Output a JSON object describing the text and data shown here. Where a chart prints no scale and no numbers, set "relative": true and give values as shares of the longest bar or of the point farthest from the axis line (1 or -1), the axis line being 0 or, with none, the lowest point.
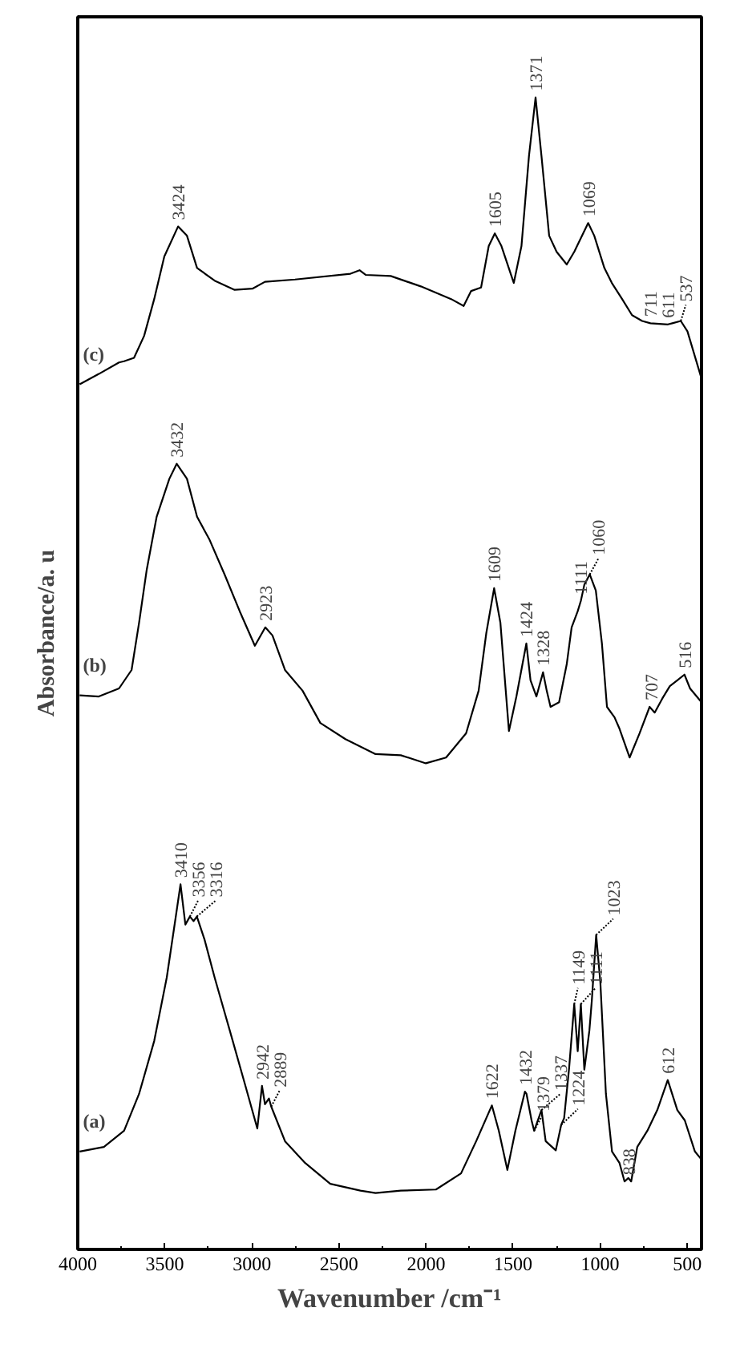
{
  "chart_data": {
    "type": "line",
    "relative": true,
    "xlabel": "Wavenumber /cm⁻¹",
    "ylabel": "Absorbance/a. u",
    "xlim": [
      4000,
      418
    ],
    "xticks": [
      4000,
      3500,
      3000,
      2500,
      2000,
      1500,
      1000,
      500
    ],
    "grid": false,
    "series": [
      {
        "name": "(c)",
        "color": "#000000",
        "x": [
          3989,
          3879,
          3763,
          3734,
          3677,
          3619,
          3561,
          3503,
          3424,
          3373,
          3315,
          3214,
          3099,
          2997,
          2925,
          2752,
          2434,
          2382,
          2347,
          2203,
          2030,
          1856,
          1784,
          1741,
          1684,
          1640,
          1605,
          1567,
          1496,
          1452,
          1409,
          1371,
          1337,
          1293,
          1250,
          1192,
          1149,
          1069,
          1034,
          976,
          933,
          874,
          817,
          759,
          711,
          611,
          586,
          537,
          499,
          418
        ],
        "values": [
          0.751,
          0.76,
          0.77,
          0.771,
          0.774,
          0.793,
          0.825,
          0.862,
          0.888,
          0.88,
          0.852,
          0.841,
          0.833,
          0.834,
          0.84,
          0.842,
          0.847,
          0.85,
          0.846,
          0.845,
          0.836,
          0.825,
          0.819,
          0.832,
          0.835,
          0.871,
          0.882,
          0.871,
          0.839,
          0.871,
          0.949,
          1.0,
          0.949,
          0.88,
          0.866,
          0.855,
          0.866,
          0.891,
          0.88,
          0.852,
          0.839,
          0.825,
          0.811,
          0.806,
          0.804,
          0.803,
          0.804,
          0.806,
          0.797,
          0.756
        ]
      },
      {
        "name": "(b)",
        "color": "#000000",
        "x": [
          3989,
          3879,
          3763,
          3691,
          3648,
          3604,
          3547,
          3474,
          3432,
          3373,
          3315,
          3243,
          3157,
          3070,
          2983,
          2923,
          2882,
          2810,
          2709,
          2607,
          2463,
          2290,
          2145,
          2001,
          1885,
          1770,
          1698,
          1654,
          1609,
          1573,
          1524,
          1481,
          1424,
          1400,
          1366,
          1328,
          1307,
          1285,
          1236,
          1192,
          1164,
          1129,
          1111,
          1091,
          1060,
          1025,
          990,
          961,
          918,
          889,
          831,
          774,
          716,
          687,
          644,
          600,
          557,
          516,
          484,
          418
        ],
        "values": [
          0.481,
          0.48,
          0.487,
          0.503,
          0.544,
          0.59,
          0.636,
          0.669,
          0.682,
          0.669,
          0.636,
          0.616,
          0.586,
          0.554,
          0.524,
          0.54,
          0.533,
          0.503,
          0.485,
          0.457,
          0.443,
          0.43,
          0.429,
          0.422,
          0.427,
          0.448,
          0.485,
          0.535,
          0.574,
          0.544,
          0.45,
          0.48,
          0.526,
          0.494,
          0.48,
          0.501,
          0.485,
          0.471,
          0.475,
          0.508,
          0.54,
          0.554,
          0.563,
          0.577,
          0.586,
          0.572,
          0.526,
          0.471,
          0.462,
          0.452,
          0.427,
          0.448,
          0.471,
          0.466,
          0.478,
          0.489,
          0.494,
          0.499,
          0.487,
          0.475
        ]
      },
      {
        "name": "(a)",
        "color": "#000000",
        "x": [
          3989,
          3850,
          3734,
          3648,
          3561,
          3489,
          3439,
          3410,
          3382,
          3356,
          3335,
          3316,
          3272,
          3214,
          3127,
          3041,
          2969,
          2942,
          2925,
          2902,
          2889,
          2810,
          2694,
          2550,
          2377,
          2290,
          2145,
          1943,
          1799,
          1712,
          1622,
          1582,
          1533,
          1487,
          1432,
          1423,
          1394,
          1379,
          1337,
          1313,
          1255,
          1224,
          1207,
          1178,
          1149,
          1129,
          1111,
          1091,
          1062,
          1048,
          1023,
          999,
          967,
          932,
          889,
          860,
          838,
          822,
          787,
          729,
          672,
          612,
          557,
          514,
          456,
          418
        ],
        "values": [
          0.085,
          0.089,
          0.103,
          0.135,
          0.181,
          0.236,
          0.287,
          0.317,
          0.282,
          0.289,
          0.285,
          0.289,
          0.269,
          0.236,
          0.19,
          0.144,
          0.105,
          0.142,
          0.126,
          0.131,
          0.124,
          0.094,
          0.075,
          0.057,
          0.051,
          0.049,
          0.051,
          0.052,
          0.066,
          0.094,
          0.125,
          0.103,
          0.069,
          0.103,
          0.137,
          0.135,
          0.112,
          0.103,
          0.121,
          0.094,
          0.086,
          0.108,
          0.114,
          0.158,
          0.213,
          0.172,
          0.213,
          0.156,
          0.19,
          0.216,
          0.273,
          0.232,
          0.135,
          0.085,
          0.075,
          0.059,
          0.062,
          0.059,
          0.089,
          0.103,
          0.121,
          0.147,
          0.121,
          0.112,
          0.085,
          0.078
        ]
      }
    ],
    "annotations": [
      {
        "text": "3424",
        "x": 3424,
        "y": 0.888
      },
      {
        "text": "1605",
        "x": 1605,
        "y": 0.882
      },
      {
        "text": "1371",
        "x": 1371,
        "y": 1.0
      },
      {
        "text": "1069",
        "x": 1069,
        "y": 0.891
      },
      {
        "text": "711",
        "x": 711,
        "y": 0.804
      },
      {
        "text": "611",
        "x": 611,
        "y": 0.803
      },
      {
        "text": "537",
        "x": 537,
        "y": 0.806
      },
      {
        "text": "3432",
        "x": 3432,
        "y": 0.682
      },
      {
        "text": "2923",
        "x": 2923,
        "y": 0.54
      },
      {
        "text": "1609",
        "x": 1609,
        "y": 0.574
      },
      {
        "text": "1424",
        "x": 1424,
        "y": 0.526
      },
      {
        "text": "1328",
        "x": 1328,
        "y": 0.501
      },
      {
        "text": "1111",
        "x": 1111,
        "y": 0.563
      },
      {
        "text": "1060",
        "x": 1060,
        "y": 0.586
      },
      {
        "text": "707",
        "x": 707,
        "y": 0.471
      },
      {
        "text": "516",
        "x": 516,
        "y": 0.499
      },
      {
        "text": "3410",
        "x": 3410,
        "y": 0.317
      },
      {
        "text": "3356",
        "x": 3356,
        "y": 0.289
      },
      {
        "text": "3316",
        "x": 3316,
        "y": 0.289
      },
      {
        "text": "2942",
        "x": 2942,
        "y": 0.142
      },
      {
        "text": "2889",
        "x": 2889,
        "y": 0.124
      },
      {
        "text": "1622",
        "x": 1622,
        "y": 0.125
      },
      {
        "text": "1432",
        "x": 1432,
        "y": 0.137
      },
      {
        "text": "1379",
        "x": 1379,
        "y": 0.103
      },
      {
        "text": "1337",
        "x": 1337,
        "y": 0.121
      },
      {
        "text": "1224",
        "x": 1224,
        "y": 0.108
      },
      {
        "text": "1149",
        "x": 1149,
        "y": 0.213
      },
      {
        "text": "1111",
        "x": 1111,
        "y": 0.213
      },
      {
        "text": "1023",
        "x": 1023,
        "y": 0.273
      },
      {
        "text": "838",
        "x": 838,
        "y": 0.059
      },
      {
        "text": "612",
        "x": 612,
        "y": 0.147
      }
    ]
  }
}
